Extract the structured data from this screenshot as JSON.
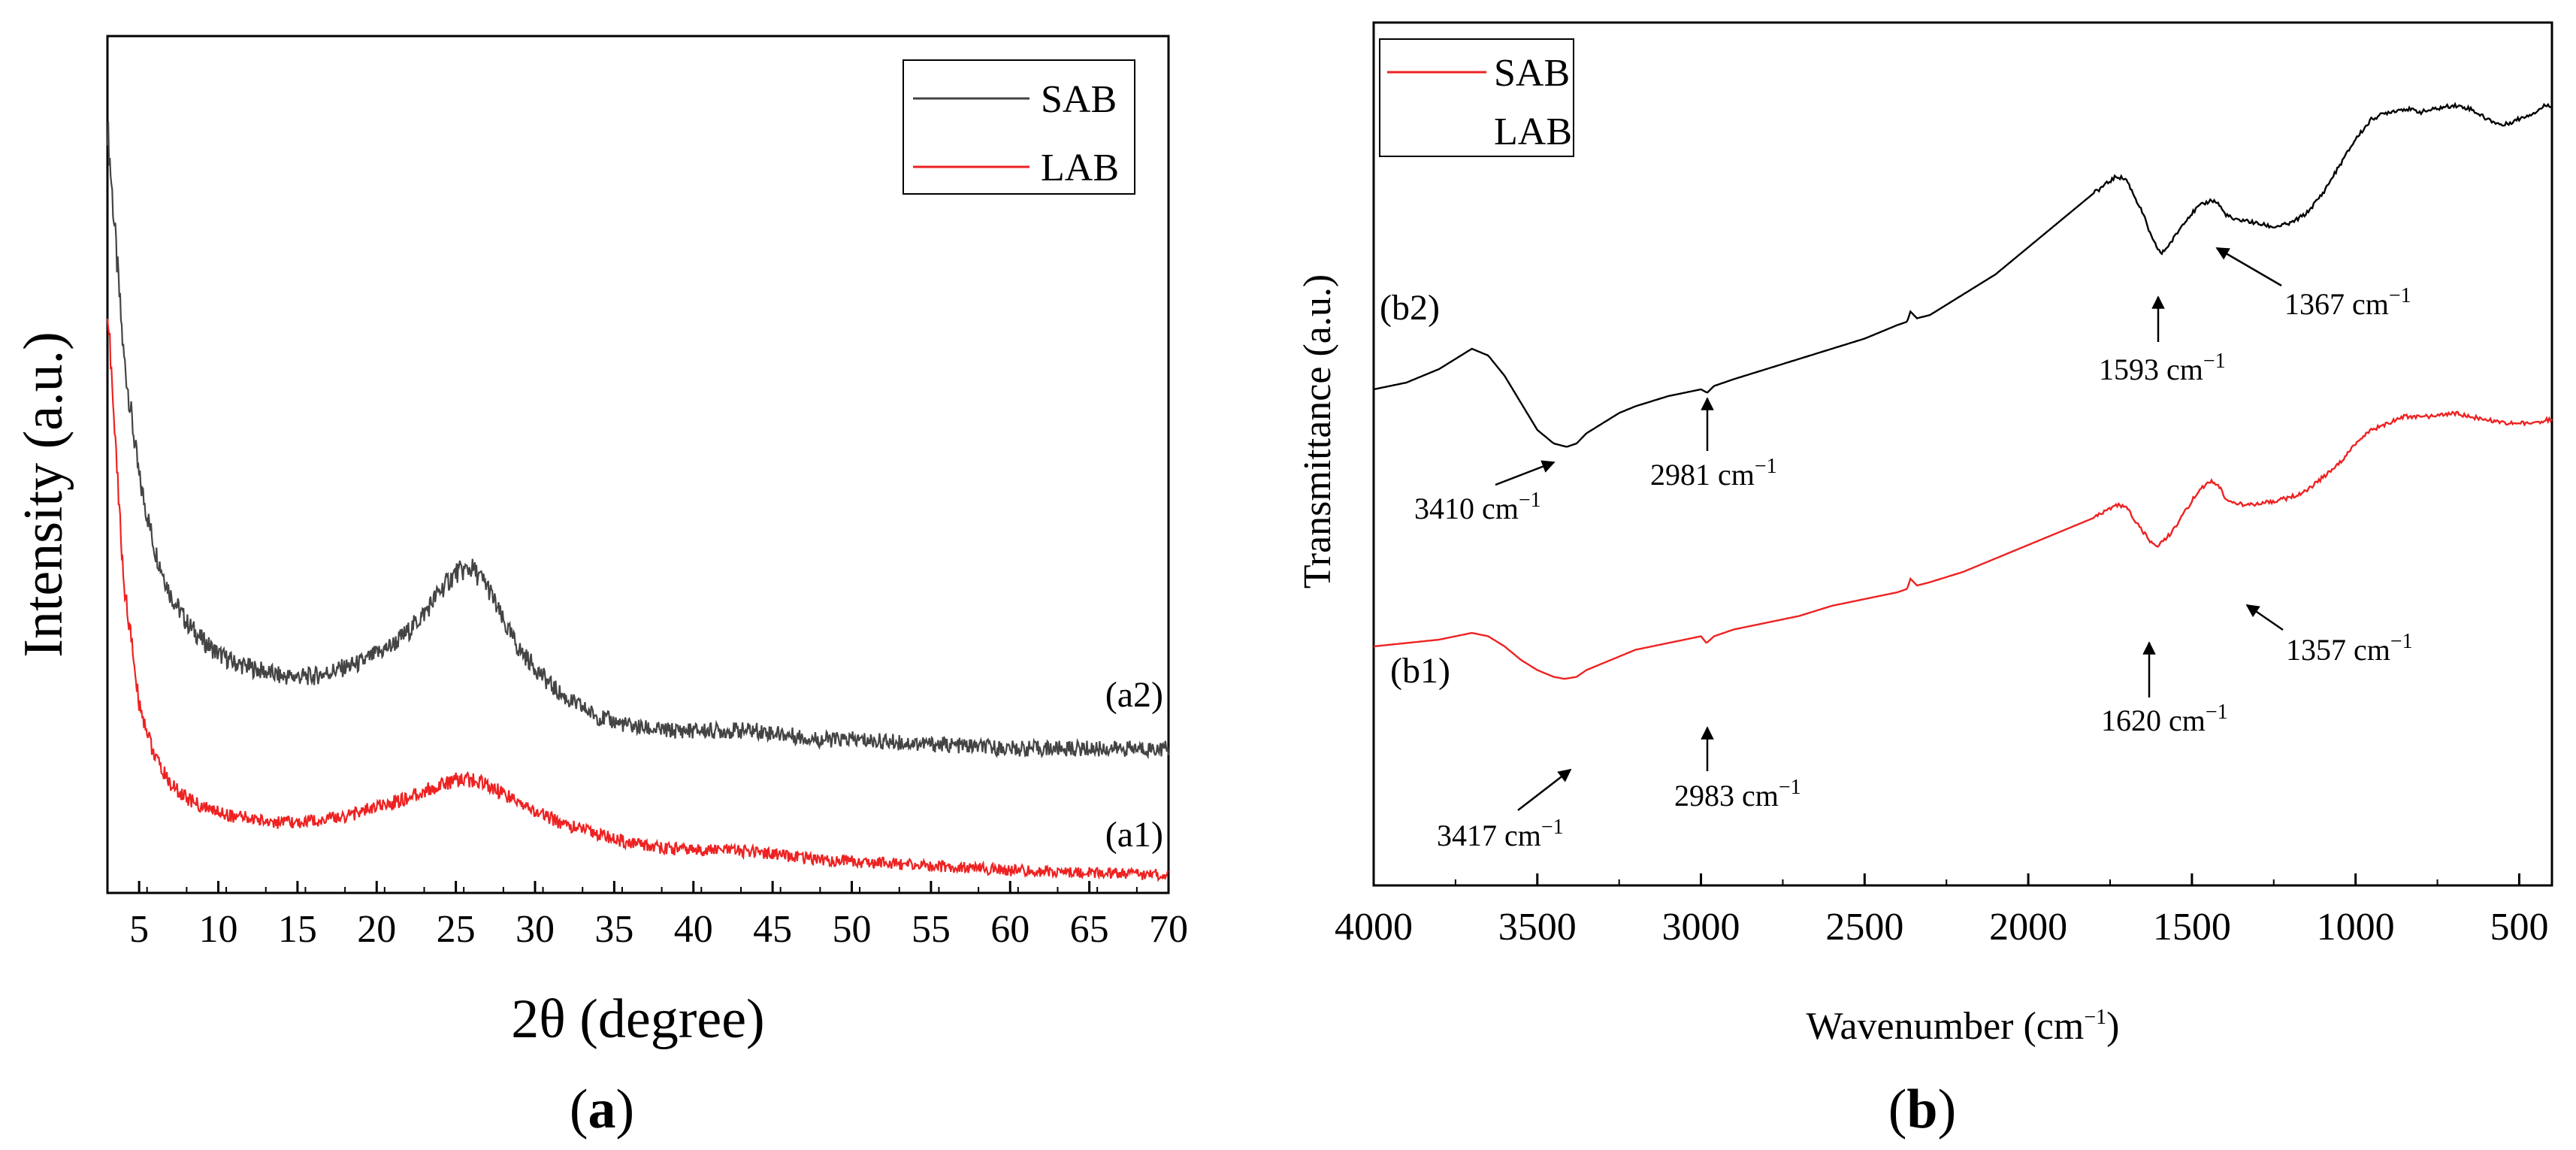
{
  "panels": {
    "a": {
      "open": "(",
      "letter": "a",
      "close": ")"
    },
    "b": {
      "open": "(",
      "letter": "b",
      "close": ")"
    }
  },
  "chart_data": [
    {
      "type": "line",
      "xlabel": "2θ (degree)",
      "ylabel": "Intensity (a.u.)",
      "xlim": [
        3,
        70
      ],
      "ylim": [
        0,
        1.9
      ],
      "xticks": [
        5,
        10,
        15,
        20,
        25,
        30,
        35,
        40,
        45,
        50,
        55,
        60,
        65,
        70
      ],
      "grid": false,
      "legend_position": "top-right",
      "legend": [
        {
          "name": "SAB",
          "color": "#444444"
        },
        {
          "name": "LAB",
          "color": "#ee2222"
        }
      ],
      "curve_labels": [
        {
          "text": "(a2)",
          "series": "SAB"
        },
        {
          "text": "(a1)",
          "series": "LAB"
        }
      ],
      "series": [
        {
          "name": "SAB",
          "color": "#444444",
          "x": [
            3,
            4,
            5,
            6,
            7,
            8,
            9,
            10,
            11,
            12,
            13,
            14,
            15,
            16,
            17,
            18,
            19,
            20,
            21,
            22,
            23,
            24,
            25,
            26,
            27,
            28,
            29,
            30,
            31,
            32,
            33,
            34,
            35,
            36,
            38,
            40,
            42,
            44,
            46,
            48,
            50,
            55,
            60,
            65,
            70
          ],
          "y": [
            1.7,
            1.2,
            0.92,
            0.76,
            0.66,
            0.6,
            0.56,
            0.53,
            0.51,
            0.5,
            0.49,
            0.48,
            0.48,
            0.48,
            0.49,
            0.5,
            0.51,
            0.53,
            0.55,
            0.58,
            0.62,
            0.67,
            0.71,
            0.72,
            0.68,
            0.6,
            0.54,
            0.5,
            0.46,
            0.43,
            0.41,
            0.39,
            0.38,
            0.37,
            0.36,
            0.36,
            0.36,
            0.36,
            0.35,
            0.34,
            0.34,
            0.33,
            0.32,
            0.32,
            0.32
          ]
        },
        {
          "name": "LAB",
          "color": "#ee2222",
          "x": [
            3,
            4,
            5,
            6,
            7,
            8,
            9,
            10,
            11,
            12,
            13,
            14,
            15,
            16,
            17,
            18,
            19,
            20,
            21,
            22,
            23,
            24,
            25,
            26,
            27,
            28,
            29,
            30,
            31,
            32,
            33,
            34,
            35,
            36,
            38,
            40,
            42,
            44,
            46,
            48,
            50,
            55,
            60,
            65,
            70
          ],
          "y": [
            1.3,
            0.7,
            0.42,
            0.3,
            0.24,
            0.21,
            0.19,
            0.18,
            0.17,
            0.165,
            0.16,
            0.155,
            0.155,
            0.16,
            0.165,
            0.17,
            0.18,
            0.19,
            0.2,
            0.21,
            0.225,
            0.24,
            0.25,
            0.25,
            0.24,
            0.22,
            0.2,
            0.18,
            0.165,
            0.15,
            0.14,
            0.13,
            0.12,
            0.11,
            0.1,
            0.095,
            0.095,
            0.09,
            0.08,
            0.075,
            0.07,
            0.06,
            0.05,
            0.045,
            0.04
          ]
        }
      ]
    },
    {
      "type": "line",
      "xlabel": "Wavenumber (cm",
      "xlabel_sup": "−1",
      "xlabel_close": ")",
      "ylabel": "Transmittance (a.u.)",
      "xlim": [
        4000,
        400
      ],
      "ylim": [
        0,
        1
      ],
      "xticks": [
        4000,
        3500,
        3000,
        2500,
        2000,
        1500,
        1000,
        500
      ],
      "grid": false,
      "legend_position": "top-left",
      "legend": [
        {
          "name": "SAB",
          "color": "#ee2222"
        },
        {
          "name": "LAB",
          "color": "#000000"
        }
      ],
      "curve_labels": [
        {
          "text": "(b2)",
          "series": "LAB"
        },
        {
          "text": "(b1)",
          "series": "SAB"
        }
      ],
      "annotations": [
        {
          "value": "3410",
          "unit": "cm",
          "sup": "−1",
          "series": "LAB",
          "x": 3410
        },
        {
          "value": "2981",
          "unit": "cm",
          "sup": "−1",
          "series": "LAB",
          "x": 2981
        },
        {
          "value": "1593",
          "unit": "cm",
          "sup": "−1",
          "series": "LAB",
          "x": 1593
        },
        {
          "value": "1367",
          "unit": " cm",
          "sup": "−1",
          "series": "LAB",
          "x": 1367
        },
        {
          "value": "3417",
          "unit": "cm",
          "sup": "−1",
          "series": "SAB",
          "x": 3417
        },
        {
          "value": "2983",
          "unit": "cm",
          "sup": "−1",
          "series": "SAB",
          "x": 2983
        },
        {
          "value": "1620",
          "unit": " cm",
          "sup": "−1",
          "series": "SAB",
          "x": 1620
        },
        {
          "value": "1357",
          "unit": " cm",
          "sup": "−1",
          "series": "SAB",
          "x": 1357
        }
      ],
      "series": [
        {
          "name": "LAB",
          "color": "#000000",
          "x": [
            4000,
            3900,
            3800,
            3700,
            3650,
            3600,
            3550,
            3500,
            3450,
            3410,
            3380,
            3350,
            3300,
            3250,
            3200,
            3100,
            3050,
            3000,
            2981,
            2960,
            2900,
            2800,
            2700,
            2600,
            2500,
            2400,
            2370,
            2360,
            2340,
            2300,
            2200,
            2100,
            2000,
            1900,
            1800,
            1730,
            1700,
            1680,
            1650,
            1620,
            1593,
            1560,
            1520,
            1480,
            1440,
            1420,
            1400,
            1370,
            1340,
            1300,
            1250,
            1200,
            1150,
            1100,
            1050,
            1000,
            950,
            900,
            850,
            800,
            750,
            700,
            650,
            600,
            550,
            500,
            450,
            420
          ],
          "y": [
            0.58,
            0.59,
            0.61,
            0.64,
            0.63,
            0.6,
            0.56,
            0.52,
            0.5,
            0.495,
            0.5,
            0.515,
            0.53,
            0.545,
            0.555,
            0.57,
            0.575,
            0.58,
            0.575,
            0.585,
            0.595,
            0.61,
            0.625,
            0.64,
            0.655,
            0.675,
            0.68,
            0.695,
            0.685,
            0.69,
            0.72,
            0.75,
            0.79,
            0.83,
            0.87,
            0.895,
            0.89,
            0.87,
            0.84,
            0.8,
            0.78,
            0.8,
            0.83,
            0.85,
            0.86,
            0.855,
            0.84,
            0.83,
            0.83,
            0.825,
            0.82,
            0.825,
            0.84,
            0.87,
            0.91,
            0.95,
            0.98,
            0.99,
            0.995,
            0.99,
            0.995,
            1.0,
            0.995,
            0.98,
            0.97,
            0.98,
            0.99,
            1.0
          ]
        },
        {
          "name": "SAB",
          "color": "#ee2222",
          "x": [
            4000,
            3900,
            3800,
            3700,
            3650,
            3600,
            3550,
            3500,
            3450,
            3417,
            3380,
            3350,
            3300,
            3250,
            3200,
            3100,
            3050,
            3000,
            2983,
            2960,
            2900,
            2800,
            2700,
            2600,
            2500,
            2400,
            2370,
            2360,
            2340,
            2300,
            2200,
            2100,
            2000,
            1900,
            1800,
            1730,
            1700,
            1680,
            1650,
            1620,
            1600,
            1560,
            1520,
            1480,
            1440,
            1420,
            1400,
            1370,
            1340,
            1300,
            1250,
            1200,
            1150,
            1100,
            1050,
            1000,
            950,
            900,
            850,
            800,
            750,
            700,
            650,
            600,
            550,
            500,
            450,
            420
          ],
          "y": [
            0.2,
            0.205,
            0.21,
            0.22,
            0.215,
            0.2,
            0.18,
            0.165,
            0.155,
            0.152,
            0.155,
            0.165,
            0.175,
            0.185,
            0.195,
            0.205,
            0.21,
            0.215,
            0.205,
            0.215,
            0.225,
            0.235,
            0.245,
            0.26,
            0.27,
            0.28,
            0.285,
            0.3,
            0.29,
            0.295,
            0.31,
            0.33,
            0.35,
            0.37,
            0.39,
            0.41,
            0.405,
            0.39,
            0.37,
            0.35,
            0.35,
            0.37,
            0.4,
            0.43,
            0.445,
            0.44,
            0.42,
            0.41,
            0.41,
            0.41,
            0.415,
            0.42,
            0.43,
            0.45,
            0.47,
            0.5,
            0.52,
            0.53,
            0.54,
            0.54,
            0.54,
            0.545,
            0.54,
            0.535,
            0.53,
            0.53,
            0.53,
            0.535
          ]
        }
      ]
    }
  ]
}
